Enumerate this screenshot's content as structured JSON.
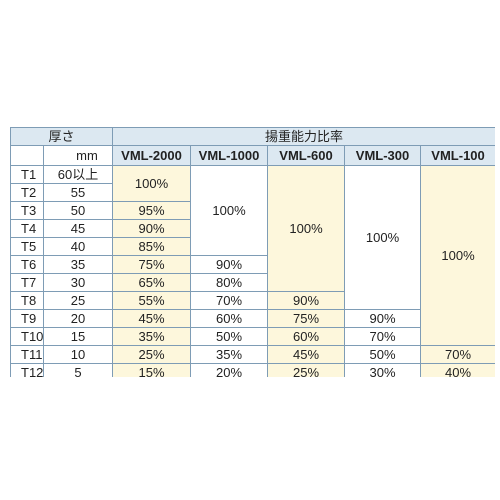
{
  "header": {
    "thickness_label": "厚さ",
    "ratio_label": "揚重能力比率",
    "unit": "mm",
    "models": [
      "VML-2000",
      "VML-1000",
      "VML-600",
      "VML-300",
      "VML-100"
    ]
  },
  "rows": [
    {
      "code": "T1",
      "mm": "60以上"
    },
    {
      "code": "T2",
      "mm": "55"
    },
    {
      "code": "T3",
      "mm": "50"
    },
    {
      "code": "T4",
      "mm": "45"
    },
    {
      "code": "T5",
      "mm": "40"
    },
    {
      "code": "T6",
      "mm": "35"
    },
    {
      "code": "T7",
      "mm": "30"
    },
    {
      "code": "T8",
      "mm": "25"
    },
    {
      "code": "T9",
      "mm": "20"
    },
    {
      "code": "T10",
      "mm": "15"
    },
    {
      "code": "T11",
      "mm": "10"
    },
    {
      "code": "T12",
      "mm": "5"
    }
  ],
  "values": {
    "vml2000": [
      "100%",
      "95%",
      "90%",
      "85%",
      "75%",
      "65%",
      "55%",
      "45%",
      "35%",
      "25%",
      "15%"
    ],
    "vml1000": [
      "100%",
      "90%",
      "80%",
      "70%",
      "60%",
      "50%",
      "35%",
      "20%"
    ],
    "vml600": [
      "100%",
      "90%",
      "75%",
      "60%",
      "45%",
      "25%"
    ],
    "vml300": [
      "100%",
      "90%",
      "70%",
      "50%",
      "30%"
    ],
    "vml100": [
      "100%",
      "70%",
      "40%"
    ]
  }
}
